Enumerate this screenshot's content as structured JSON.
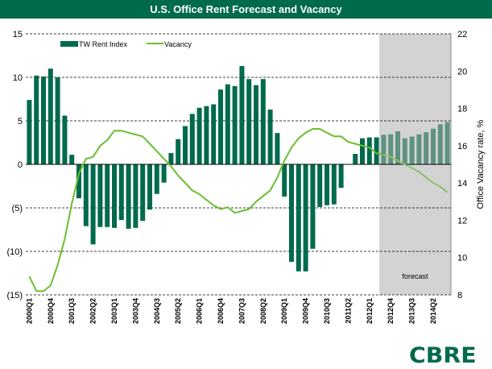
{
  "title": "U.S. Office Rent Forecast and Vacancy",
  "logo_text": "CBRE",
  "colors": {
    "title_bg": "#006a4d",
    "bar": "#006a4d",
    "bar_forecast": "#5f9282",
    "line": "#6abf2e",
    "line_forecast": "#8cc06a",
    "forecast_bg": "#d3d3d3"
  },
  "chart_data": {
    "type": "bar+line",
    "title": "U.S. Office Rent Forecast and Vacancy",
    "ylabel_right": "Office Vacancy rate, %",
    "ylim_left": [
      -15,
      15
    ],
    "yticks_left": [
      "15",
      "10",
      "5",
      "0",
      "(5)",
      "(10)",
      "(15)"
    ],
    "ylim_right": [
      8,
      22
    ],
    "yticks_right": [
      "22",
      "20",
      "18",
      "16",
      "14",
      "12",
      "10",
      "8"
    ],
    "grid": "horizontal dashed",
    "legend_position": "top-left",
    "forecast_label": "forecast",
    "forecast_start": "2012Q3",
    "x_tick_labels": [
      "2000Q1",
      "2000Q4",
      "2001Q3",
      "2002Q2",
      "2003Q1",
      "2003Q4",
      "2004Q3",
      "2005Q2",
      "2006Q1",
      "2006Q4",
      "2007Q3",
      "2008Q2",
      "2009Q1",
      "2009Q4",
      "2010Q3",
      "2011Q2",
      "2012Q1",
      "2012Q4",
      "2013Q3",
      "2014Q2"
    ],
    "categories": [
      "2000Q1",
      "2000Q2",
      "2000Q3",
      "2000Q4",
      "2001Q1",
      "2001Q2",
      "2001Q3",
      "2001Q4",
      "2002Q1",
      "2002Q2",
      "2002Q3",
      "2002Q4",
      "2003Q1",
      "2003Q2",
      "2003Q3",
      "2003Q4",
      "2004Q1",
      "2004Q2",
      "2004Q3",
      "2004Q4",
      "2005Q1",
      "2005Q2",
      "2005Q3",
      "2005Q4",
      "2006Q1",
      "2006Q2",
      "2006Q3",
      "2006Q4",
      "2007Q1",
      "2007Q2",
      "2007Q3",
      "2007Q4",
      "2008Q1",
      "2008Q2",
      "2008Q3",
      "2008Q4",
      "2009Q1",
      "2009Q2",
      "2009Q3",
      "2009Q4",
      "2010Q1",
      "2010Q2",
      "2010Q3",
      "2010Q4",
      "2011Q1",
      "2011Q2",
      "2011Q3",
      "2011Q4",
      "2012Q1",
      "2012Q2",
      "2012Q3",
      "2012Q4",
      "2013Q1",
      "2013Q2",
      "2013Q3",
      "2013Q4",
      "2014Q1",
      "2014Q2",
      "2014Q3",
      "2014Q4"
    ],
    "series": [
      {
        "name": "TW Rent Index",
        "type": "bar",
        "axis": "left",
        "values": [
          7.4,
          10.2,
          10.1,
          11.0,
          10.0,
          5.6,
          1.1,
          -3.9,
          -7.1,
          -9.2,
          -7.2,
          -7.2,
          -7.3,
          -6.4,
          -7.4,
          -7.3,
          -6.5,
          -5.2,
          -3.4,
          -2.1,
          1.3,
          2.9,
          4.4,
          5.8,
          6.5,
          6.7,
          6.9,
          8.6,
          9.2,
          9.0,
          11.3,
          9.8,
          9.1,
          9.8,
          6.3,
          3.6,
          -3.7,
          -11.2,
          -12.3,
          -12.3,
          -9.7,
          -4.9,
          -4.7,
          -4.6,
          -2.7,
          0.0,
          1.2,
          3.0,
          3.1,
          3.1,
          3.4,
          3.45,
          3.8,
          3.0,
          3.2,
          3.45,
          3.7,
          4.1,
          4.6,
          4.85
        ]
      },
      {
        "name": "Vacancy",
        "type": "line",
        "axis": "right",
        "values": [
          9.0,
          8.2,
          8.2,
          8.5,
          9.6,
          11.0,
          12.9,
          14.5,
          15.3,
          15.4,
          16.0,
          16.3,
          16.8,
          16.8,
          16.7,
          16.6,
          16.5,
          16.1,
          15.7,
          15.3,
          14.9,
          14.4,
          14.0,
          13.6,
          13.4,
          13.1,
          12.8,
          12.6,
          12.7,
          12.4,
          12.5,
          12.6,
          13.0,
          13.3,
          13.6,
          14.3,
          15.2,
          15.9,
          16.4,
          16.7,
          16.9,
          16.9,
          16.7,
          16.5,
          16.5,
          16.2,
          16.1,
          16.0,
          15.9,
          15.6,
          15.5,
          15.4,
          15.2,
          15.0,
          14.8,
          14.6,
          14.3,
          14.0,
          13.8,
          13.5
        ]
      }
    ]
  }
}
